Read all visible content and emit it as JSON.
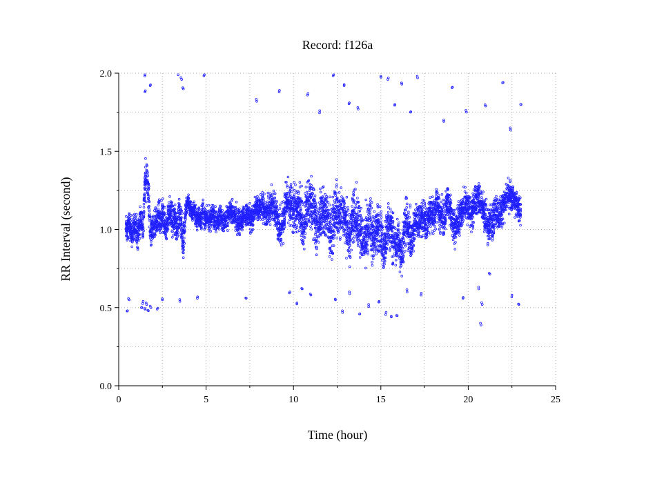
{
  "chart_data": {
    "type": "scatter",
    "title": "Record:  f126a",
    "xlabel": "Time (hour)",
    "ylabel": "RR Interval (second)",
    "xlim": [
      0,
      25
    ],
    "ylim": [
      0,
      2.0
    ],
    "x_ticks": [
      0,
      5,
      10,
      15,
      20,
      25
    ],
    "x_tick_labels": [
      "0",
      "5",
      "10",
      "15",
      "20",
      "25"
    ],
    "y_ticks": [
      0.0,
      0.5,
      1.0,
      1.5,
      2.0
    ],
    "y_tick_labels": [
      "0.0",
      "0.5",
      "1.0",
      "1.5",
      "2.0"
    ],
    "grid": true,
    "marker_color": "#1f1fff",
    "series": [
      {
        "x": [
          0.4,
          0.5,
          0.6,
          0.7,
          0.8,
          0.9,
          1.0,
          1.1,
          1.2,
          1.3,
          1.4,
          1.5,
          1.6,
          1.7,
          1.8,
          1.9,
          2.0,
          2.1,
          2.2,
          2.3,
          2.4,
          2.5,
          2.6,
          2.7,
          2.8,
          2.9,
          3.0,
          3.1,
          3.2,
          3.3,
          3.4,
          3.5,
          3.6,
          3.7,
          3.8,
          3.9,
          4.0,
          4.1,
          4.2,
          4.3,
          4.4,
          4.5,
          4.6,
          4.7,
          4.8,
          4.9,
          5.0,
          5.2,
          5.4,
          5.6,
          5.8,
          6.0,
          6.2,
          6.4,
          6.6,
          6.8,
          7.0,
          7.2,
          7.4,
          7.6,
          7.8,
          8.0,
          8.2,
          8.4,
          8.6,
          8.8,
          9.0,
          9.2,
          9.4,
          9.6,
          9.8,
          10.0,
          10.2,
          10.4,
          10.6,
          10.8,
          11.0,
          11.2,
          11.4,
          11.6,
          11.8,
          12.0,
          12.2,
          12.4,
          12.6,
          12.8,
          13.0,
          13.2,
          13.4,
          13.6,
          13.8,
          14.0,
          14.2,
          14.4,
          14.6,
          14.8,
          15.0,
          15.2,
          15.4,
          15.6,
          15.8,
          16.0,
          16.2,
          16.4,
          16.6,
          16.8,
          17.0,
          17.2,
          17.4,
          17.6,
          17.8,
          18.0,
          18.2,
          18.4,
          18.6,
          18.8,
          19.0,
          19.2,
          19.4,
          19.6,
          19.8,
          20.0,
          20.2,
          20.4,
          20.6,
          20.8,
          21.0,
          21.2,
          21.4,
          21.6,
          21.8,
          22.0,
          22.2,
          22.4,
          22.6,
          22.8,
          23.0
        ],
        "y": [
          1.02,
          0.98,
          1.05,
          1.0,
          0.95,
          1.03,
          1.01,
          0.97,
          1.04,
          1.08,
          1.0,
          1.3,
          1.32,
          1.28,
          0.96,
          1.02,
          0.99,
          1.06,
          1.04,
          1.08,
          1.03,
          1.1,
          1.05,
          1.0,
          1.07,
          1.12,
          1.09,
          1.04,
          1.08,
          1.0,
          1.06,
          1.11,
          1.02,
          0.9,
          1.1,
          1.16,
          1.18,
          1.13,
          1.1,
          1.14,
          1.08,
          1.06,
          1.1,
          1.05,
          1.12,
          1.08,
          1.07,
          1.06,
          1.1,
          1.05,
          1.09,
          1.04,
          1.07,
          1.12,
          1.08,
          1.06,
          1.05,
          1.08,
          1.1,
          1.06,
          1.12,
          1.14,
          1.16,
          1.1,
          1.13,
          1.15,
          1.12,
          1.0,
          1.05,
          1.18,
          1.16,
          1.12,
          1.14,
          1.1,
          1.0,
          1.18,
          1.2,
          1.08,
          1.02,
          1.12,
          1.1,
          1.05,
          0.95,
          1.15,
          1.08,
          1.12,
          1.05,
          0.92,
          1.1,
          1.08,
          1.02,
          0.9,
          0.95,
          1.05,
          0.92,
          1.02,
          0.98,
          0.85,
          1.03,
          1.0,
          0.88,
          0.95,
          0.82,
          1.06,
          1.0,
          0.92,
          1.08,
          1.05,
          1.1,
          1.02,
          1.12,
          1.08,
          1.15,
          1.1,
          1.05,
          1.18,
          1.12,
          1.0,
          1.06,
          1.1,
          1.16,
          1.14,
          1.1,
          1.18,
          1.2,
          1.15,
          1.08,
          1.02,
          1.06,
          1.12,
          1.1,
          1.15,
          1.2,
          1.22,
          1.18,
          1.16,
          1.12
        ],
        "spread": [
          0.06,
          0.06,
          0.07,
          0.07,
          0.08,
          0.08,
          0.08,
          0.08,
          0.08,
          0.09,
          0.08,
          0.1,
          0.1,
          0.1,
          0.08,
          0.08,
          0.08,
          0.07,
          0.08,
          0.09,
          0.09,
          0.09,
          0.08,
          0.08,
          0.08,
          0.08,
          0.08,
          0.08,
          0.08,
          0.08,
          0.09,
          0.08,
          0.1,
          0.1,
          0.06,
          0.05,
          0.05,
          0.05,
          0.06,
          0.05,
          0.06,
          0.06,
          0.06,
          0.06,
          0.05,
          0.06,
          0.06,
          0.06,
          0.06,
          0.06,
          0.06,
          0.06,
          0.06,
          0.06,
          0.07,
          0.07,
          0.07,
          0.07,
          0.07,
          0.07,
          0.07,
          0.07,
          0.07,
          0.08,
          0.09,
          0.09,
          0.1,
          0.12,
          0.12,
          0.12,
          0.12,
          0.13,
          0.13,
          0.13,
          0.14,
          0.14,
          0.14,
          0.14,
          0.14,
          0.14,
          0.14,
          0.15,
          0.15,
          0.15,
          0.14,
          0.14,
          0.14,
          0.14,
          0.14,
          0.14,
          0.14,
          0.15,
          0.15,
          0.15,
          0.14,
          0.14,
          0.14,
          0.14,
          0.13,
          0.13,
          0.13,
          0.13,
          0.13,
          0.12,
          0.12,
          0.11,
          0.1,
          0.1,
          0.1,
          0.1,
          0.1,
          0.1,
          0.1,
          0.1,
          0.09,
          0.09,
          0.09,
          0.1,
          0.1,
          0.1,
          0.09,
          0.09,
          0.09,
          0.09,
          0.09,
          0.1,
          0.1,
          0.1,
          0.09,
          0.09,
          0.09,
          0.08,
          0.08,
          0.08,
          0.08,
          0.08,
          0.08
        ],
        "outliers": [
          [
            1.5,
            1.99
          ],
          [
            1.8,
            1.92
          ],
          [
            1.5,
            1.88
          ],
          [
            3.4,
            1.99
          ],
          [
            3.6,
            1.96
          ],
          [
            3.7,
            1.9
          ],
          [
            4.9,
            1.99
          ],
          [
            7.9,
            1.82
          ],
          [
            9.2,
            1.89
          ],
          [
            10.8,
            1.86
          ],
          [
            11.5,
            1.76
          ],
          [
            12.3,
            1.99
          ],
          [
            12.9,
            1.92
          ],
          [
            13.2,
            1.81
          ],
          [
            13.7,
            1.77
          ],
          [
            15.0,
            1.98
          ],
          [
            15.4,
            1.96
          ],
          [
            15.8,
            1.8
          ],
          [
            16.2,
            1.93
          ],
          [
            16.7,
            1.75
          ],
          [
            17.1,
            1.97
          ],
          [
            18.6,
            1.7
          ],
          [
            19.1,
            1.91
          ],
          [
            19.9,
            1.75
          ],
          [
            21.0,
            1.79
          ],
          [
            22.0,
            1.94
          ],
          [
            22.4,
            1.65
          ],
          [
            23.0,
            1.8
          ],
          [
            0.5,
            0.48
          ],
          [
            0.6,
            0.55
          ],
          [
            1.3,
            0.5
          ],
          [
            1.4,
            0.54
          ],
          [
            1.5,
            0.49
          ],
          [
            1.6,
            0.52
          ],
          [
            1.7,
            0.48
          ],
          [
            1.8,
            0.51
          ],
          [
            2.2,
            0.49
          ],
          [
            2.5,
            0.55
          ],
          [
            3.5,
            0.54
          ],
          [
            4.5,
            0.56
          ],
          [
            7.3,
            0.56
          ],
          [
            9.8,
            0.6
          ],
          [
            10.2,
            0.53
          ],
          [
            10.5,
            0.62
          ],
          [
            11.0,
            0.58
          ],
          [
            12.4,
            0.55
          ],
          [
            12.8,
            0.48
          ],
          [
            13.2,
            0.6
          ],
          [
            13.8,
            0.46
          ],
          [
            14.3,
            0.52
          ],
          [
            14.9,
            0.54
          ],
          [
            15.3,
            0.47
          ],
          [
            15.6,
            0.44
          ],
          [
            15.9,
            0.45
          ],
          [
            16.5,
            0.6
          ],
          [
            17.3,
            0.58
          ],
          [
            19.7,
            0.56
          ],
          [
            20.6,
            0.62
          ],
          [
            20.7,
            0.4
          ],
          [
            20.8,
            0.52
          ],
          [
            21.2,
            0.72
          ],
          [
            22.5,
            0.58
          ],
          [
            22.9,
            0.52
          ]
        ]
      }
    ]
  }
}
